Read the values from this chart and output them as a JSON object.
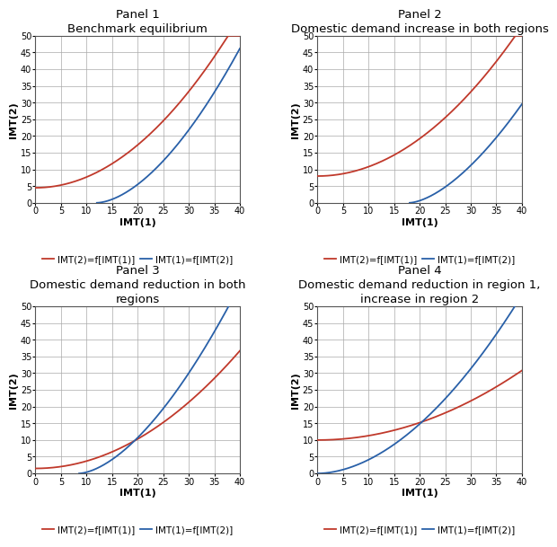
{
  "panels": [
    {
      "title1": "Panel 1",
      "title2": "Benchmark equilibrium",
      "red_a": 4.5,
      "red_b": 0.032,
      "red_c": 2.0,
      "blue_x0": 12.0,
      "blue_b": 0.16,
      "blue_c": 1.7
    },
    {
      "title1": "Panel 2",
      "title2": "Domestic demand increase in both regions",
      "red_a": 8.0,
      "red_b": 0.028,
      "red_c": 2.0,
      "blue_x0": 18.0,
      "blue_b": 0.21,
      "blue_c": 1.6
    },
    {
      "title1": "Panel 3",
      "title2": "Domestic demand reduction in both\nregions",
      "red_a": 1.5,
      "red_b": 0.022,
      "red_c": 2.0,
      "blue_x0": 8.5,
      "blue_b": 0.19,
      "blue_c": 1.65
    },
    {
      "title1": "Panel 4",
      "title2": "Domestic demand reduction in region 1,\nincrease in region 2",
      "red_a": 10.0,
      "red_b": 0.013,
      "red_c": 2.0,
      "blue_x0": 0.0,
      "blue_b": 0.058,
      "blue_c": 1.85
    }
  ],
  "xlim": [
    0,
    40
  ],
  "ylim": [
    0,
    50
  ],
  "xlabel": "IMT(1)",
  "ylabel": "IMT(2)",
  "legend1": "IMT(2)=f[IMT(1)]",
  "legend2": "IMT(1)=f[IMT(2)]",
  "red_color": "#c0392b",
  "blue_color": "#2960a8",
  "bg_color": "#ffffff",
  "grid_color": "#aaaaaa",
  "title_fontsize": 9.5,
  "axis_label_fontsize": 8,
  "tick_fontsize": 7,
  "legend_fontsize": 7.5
}
